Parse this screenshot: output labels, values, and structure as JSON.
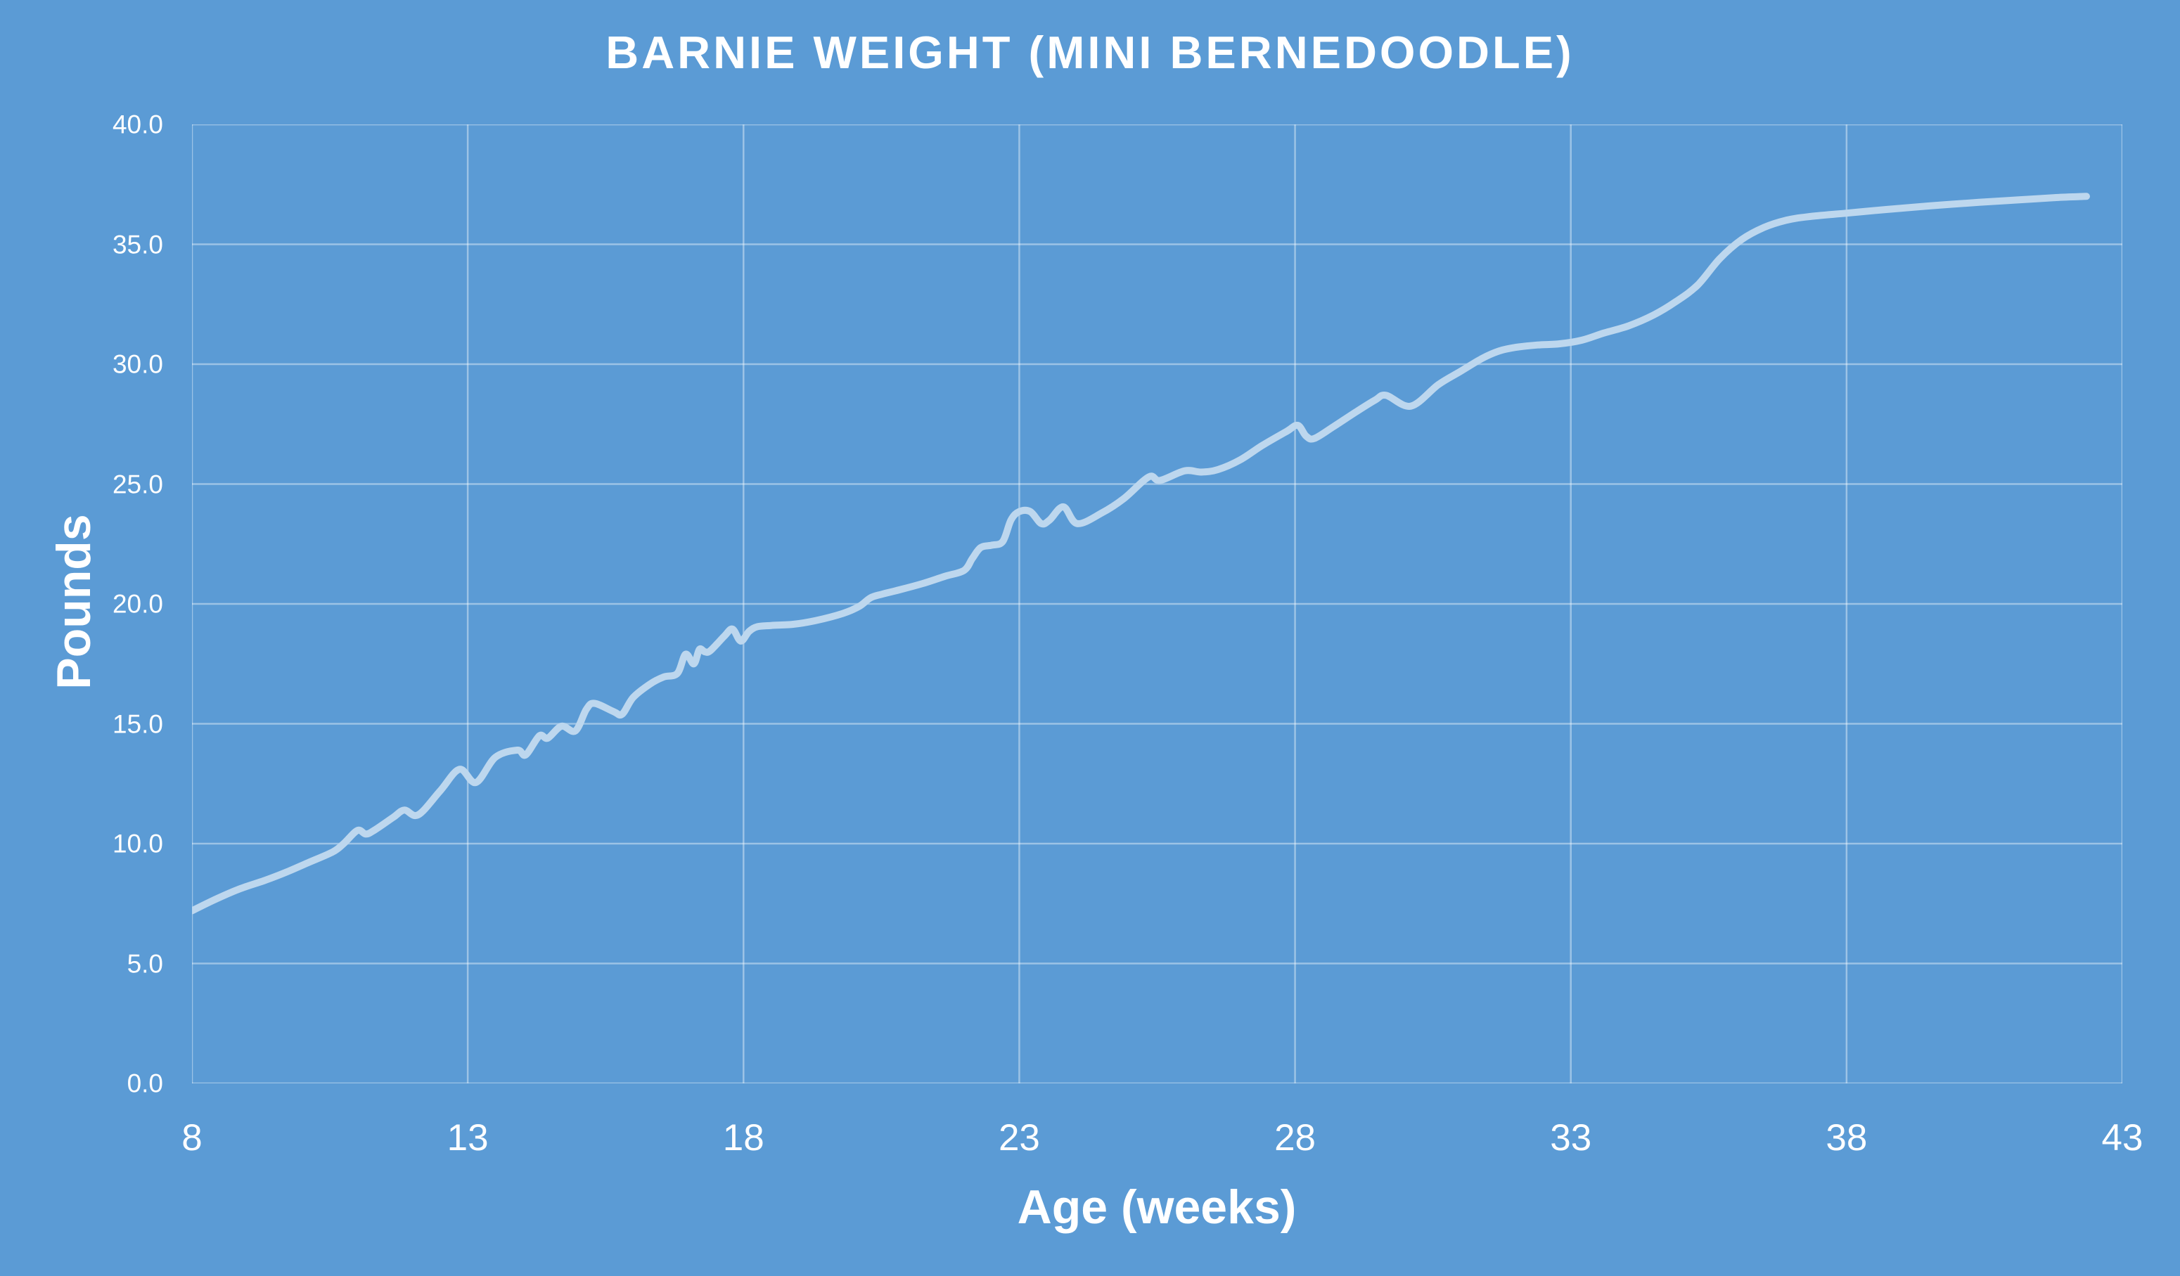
{
  "chart_data": {
    "type": "line",
    "title": "BARNIE WEIGHT (MINI BERNEDOODLE)",
    "xlabel": "Age (weeks)",
    "ylabel": "Pounds",
    "xlim": [
      8,
      43
    ],
    "ylim": [
      0,
      40
    ],
    "x_ticks": [
      8,
      13,
      18,
      23,
      28,
      33,
      38,
      43
    ],
    "y_ticks": [
      0,
      5,
      10,
      15,
      20,
      25,
      30,
      35,
      40
    ],
    "y_tick_decimals": 1,
    "grid": true,
    "legend": false,
    "series": [
      {
        "points": [
          [
            8.0,
            7.2
          ],
          [
            8.4,
            7.65
          ],
          [
            8.85,
            8.1
          ],
          [
            9.3,
            8.45
          ],
          [
            9.7,
            8.8
          ],
          [
            10.1,
            9.2
          ],
          [
            10.55,
            9.65
          ],
          [
            10.75,
            10.0
          ],
          [
            11.0,
            10.55
          ],
          [
            11.15,
            10.4
          ],
          [
            11.3,
            10.55
          ],
          [
            11.65,
            11.1
          ],
          [
            11.85,
            11.4
          ],
          [
            12.1,
            11.2
          ],
          [
            12.5,
            12.2
          ],
          [
            12.85,
            13.1
          ],
          [
            13.15,
            12.55
          ],
          [
            13.5,
            13.6
          ],
          [
            13.9,
            13.9
          ],
          [
            14.05,
            13.7
          ],
          [
            14.3,
            14.5
          ],
          [
            14.45,
            14.4
          ],
          [
            14.7,
            14.9
          ],
          [
            14.95,
            14.7
          ],
          [
            15.15,
            15.6
          ],
          [
            15.3,
            15.85
          ],
          [
            15.65,
            15.5
          ],
          [
            15.8,
            15.4
          ],
          [
            16.0,
            16.1
          ],
          [
            16.3,
            16.65
          ],
          [
            16.55,
            16.95
          ],
          [
            16.8,
            17.1
          ],
          [
            16.95,
            17.9
          ],
          [
            17.1,
            17.5
          ],
          [
            17.2,
            18.1
          ],
          [
            17.3,
            18.0
          ],
          [
            17.4,
            18.05
          ],
          [
            17.65,
            18.65
          ],
          [
            17.8,
            18.95
          ],
          [
            17.95,
            18.45
          ],
          [
            18.1,
            18.85
          ],
          [
            18.25,
            19.05
          ],
          [
            18.5,
            19.1
          ],
          [
            18.9,
            19.15
          ],
          [
            19.3,
            19.3
          ],
          [
            19.8,
            19.6
          ],
          [
            20.1,
            19.9
          ],
          [
            20.3,
            20.25
          ],
          [
            20.5,
            20.4
          ],
          [
            20.85,
            20.6
          ],
          [
            21.25,
            20.85
          ],
          [
            21.65,
            21.15
          ],
          [
            22.0,
            21.4
          ],
          [
            22.15,
            21.9
          ],
          [
            22.3,
            22.35
          ],
          [
            22.5,
            22.45
          ],
          [
            22.7,
            22.6
          ],
          [
            22.85,
            23.5
          ],
          [
            23.0,
            23.85
          ],
          [
            23.2,
            23.85
          ],
          [
            23.4,
            23.35
          ],
          [
            23.55,
            23.5
          ],
          [
            23.8,
            24.05
          ],
          [
            24.05,
            23.35
          ],
          [
            24.5,
            23.8
          ],
          [
            24.9,
            24.4
          ],
          [
            25.35,
            25.3
          ],
          [
            25.55,
            25.15
          ],
          [
            26.0,
            25.55
          ],
          [
            26.3,
            25.5
          ],
          [
            26.6,
            25.6
          ],
          [
            27.0,
            26.0
          ],
          [
            27.4,
            26.6
          ],
          [
            27.85,
            27.2
          ],
          [
            28.05,
            27.45
          ],
          [
            28.2,
            27.0
          ],
          [
            28.35,
            26.9
          ],
          [
            28.7,
            27.4
          ],
          [
            29.1,
            28.0
          ],
          [
            29.45,
            28.5
          ],
          [
            29.65,
            28.7
          ],
          [
            30.1,
            28.25
          ],
          [
            30.6,
            29.15
          ],
          [
            31.0,
            29.7
          ],
          [
            31.4,
            30.25
          ],
          [
            31.7,
            30.55
          ],
          [
            32.0,
            30.7
          ],
          [
            32.4,
            30.8
          ],
          [
            32.8,
            30.85
          ],
          [
            33.2,
            31.0
          ],
          [
            33.6,
            31.3
          ],
          [
            34.05,
            31.6
          ],
          [
            34.5,
            32.05
          ],
          [
            34.9,
            32.6
          ],
          [
            35.3,
            33.3
          ],
          [
            35.7,
            34.4
          ],
          [
            36.1,
            35.2
          ],
          [
            36.5,
            35.7
          ],
          [
            36.9,
            36.0
          ],
          [
            37.3,
            36.15
          ],
          [
            38.0,
            36.3
          ],
          [
            38.7,
            36.45
          ],
          [
            39.5,
            36.6
          ],
          [
            40.4,
            36.75
          ],
          [
            41.1,
            36.85
          ],
          [
            41.8,
            36.95
          ],
          [
            42.35,
            37.0
          ]
        ]
      }
    ],
    "colors": {
      "background": "#5B9BD5",
      "line": "#BDD7EE",
      "gridline": "rgba(255,255,255,0.40)",
      "text": "#FFFFFF"
    }
  }
}
